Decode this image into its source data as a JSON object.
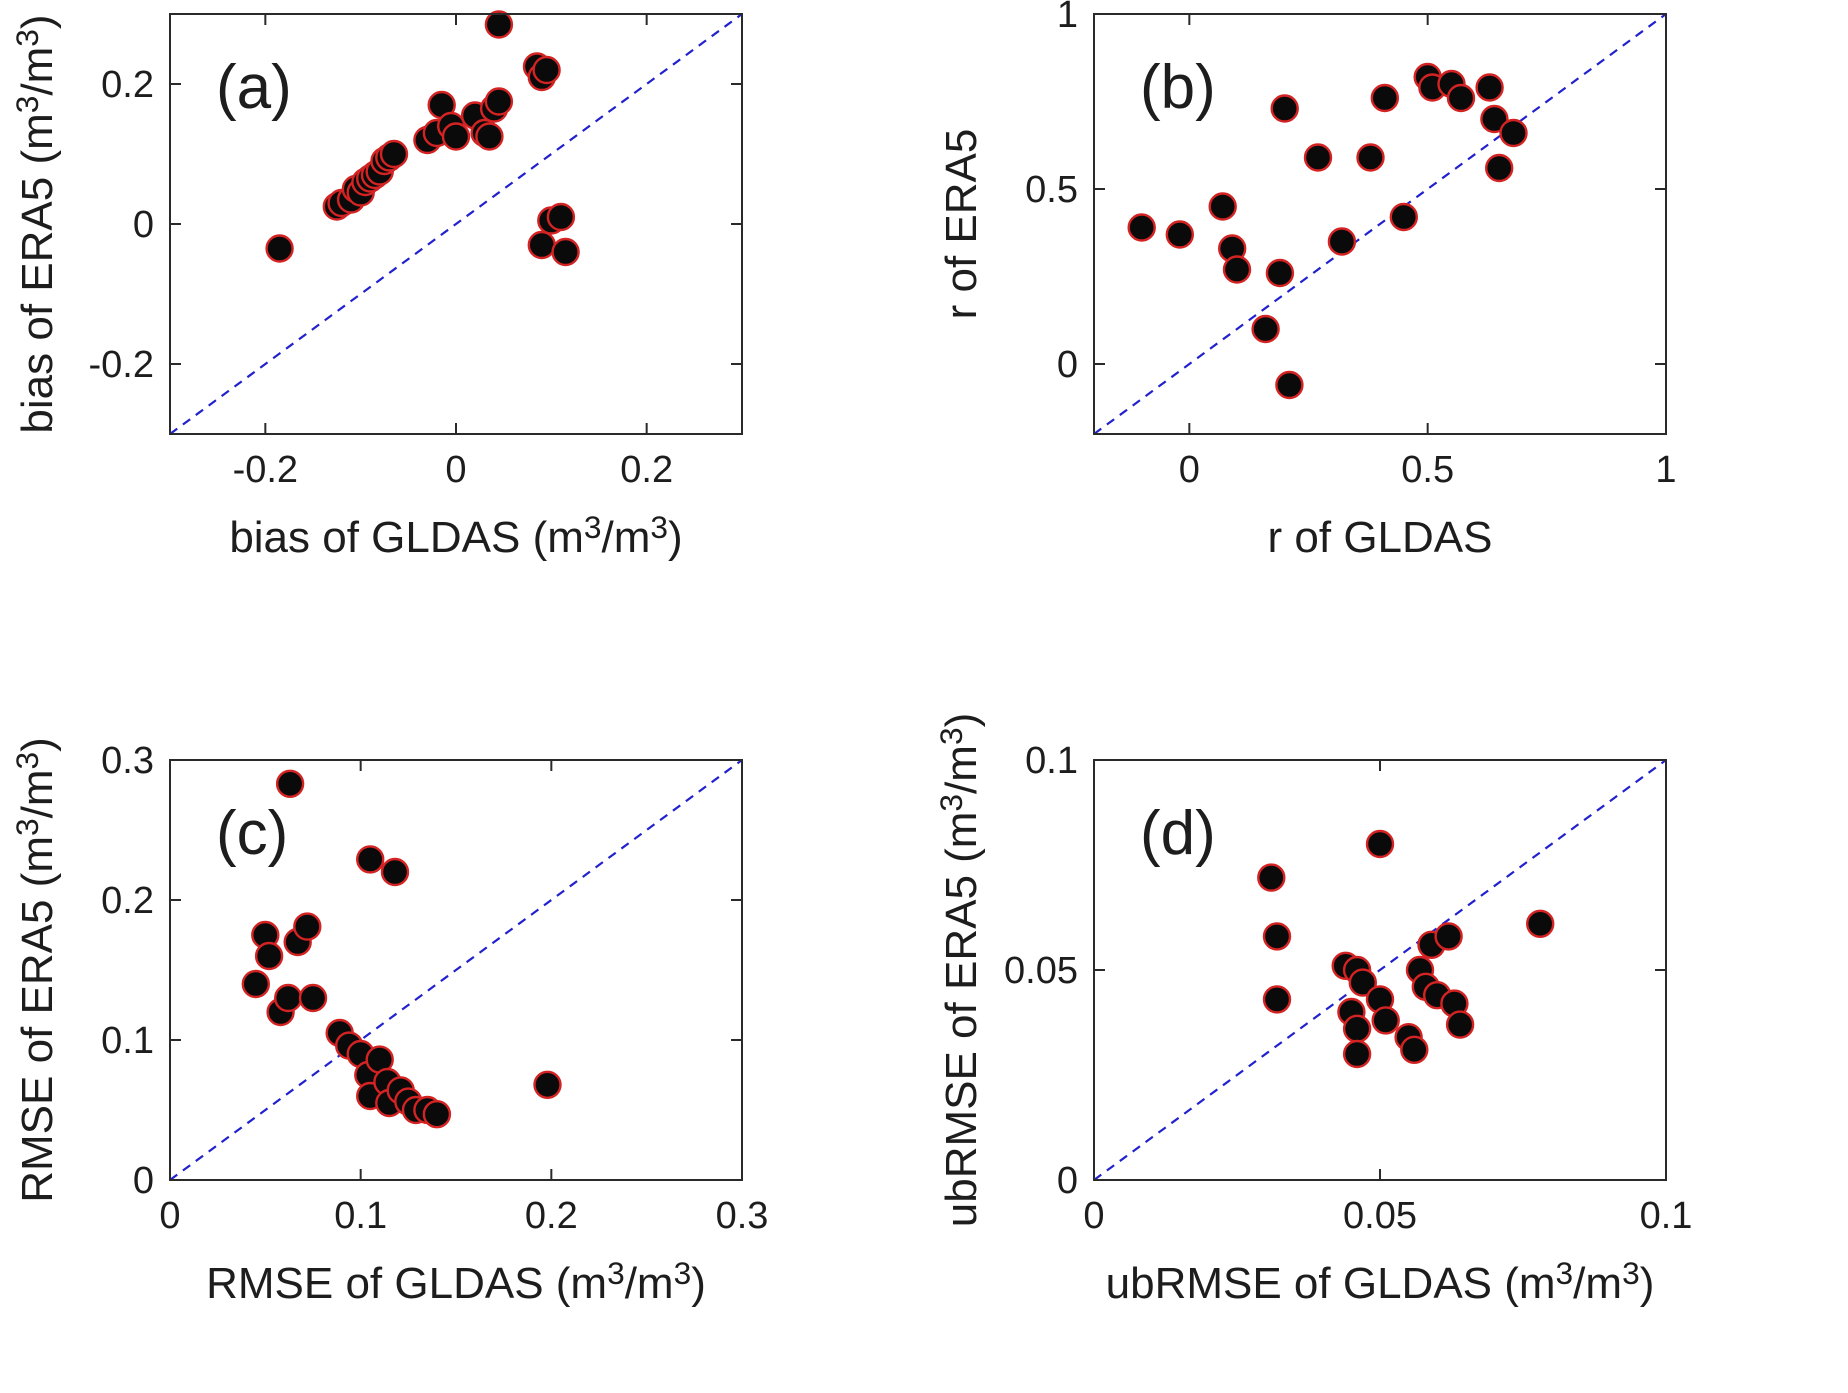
{
  "figure": {
    "background": "#ffffff",
    "marker": {
      "fill": "#0a0a0a",
      "edge": "#d42323"
    },
    "identity_line_color": "#2121cd",
    "axis_color": "#2a2a2a",
    "text_color": "#1d1d1d"
  },
  "chart_data": [
    {
      "id": "a",
      "panel_label": "(a)",
      "type": "scatter",
      "xlabel": "bias of GLDAS (m³/m³)",
      "ylabel": "bias of ERA5 (m³/m³)",
      "xlim": [
        -0.3,
        0.3
      ],
      "ylim": [
        -0.3,
        0.3
      ],
      "xticks": {
        "values": [
          -0.2,
          0,
          0.2
        ],
        "labels": [
          "-0.2",
          "0",
          "0.2"
        ]
      },
      "yticks": {
        "values": [
          -0.2,
          0,
          0.2
        ],
        "labels": [
          "-0.2",
          "0",
          "0.2"
        ]
      },
      "identity_line": true,
      "points": [
        [
          -0.185,
          -0.035
        ],
        [
          -0.125,
          0.025
        ],
        [
          -0.12,
          0.03
        ],
        [
          -0.11,
          0.035
        ],
        [
          -0.105,
          0.05
        ],
        [
          -0.1,
          0.045
        ],
        [
          -0.095,
          0.06
        ],
        [
          -0.09,
          0.065
        ],
        [
          -0.085,
          0.07
        ],
        [
          -0.08,
          0.075
        ],
        [
          -0.075,
          0.09
        ],
        [
          -0.07,
          0.095
        ],
        [
          -0.065,
          0.1
        ],
        [
          -0.03,
          0.12
        ],
        [
          -0.02,
          0.13
        ],
        [
          -0.015,
          0.17
        ],
        [
          -0.005,
          0.14
        ],
        [
          0.0,
          0.125
        ],
        [
          0.02,
          0.155
        ],
        [
          0.03,
          0.13
        ],
        [
          0.035,
          0.125
        ],
        [
          0.04,
          0.165
        ],
        [
          0.045,
          0.175
        ],
        [
          0.045,
          0.285
        ],
        [
          0.085,
          0.225
        ],
        [
          0.09,
          0.21
        ],
        [
          0.095,
          0.22
        ],
        [
          0.09,
          -0.03
        ],
        [
          0.1,
          0.005
        ],
        [
          0.11,
          0.01
        ],
        [
          0.115,
          -0.04
        ]
      ]
    },
    {
      "id": "b",
      "panel_label": "(b)",
      "type": "scatter",
      "xlabel": "r of GLDAS",
      "ylabel": "r of ERA5",
      "xlim": [
        -0.2,
        1
      ],
      "ylim": [
        -0.2,
        1
      ],
      "xticks": {
        "values": [
          0,
          0.5,
          1
        ],
        "labels": [
          "0",
          "0.5",
          "1"
        ]
      },
      "yticks": {
        "values": [
          0,
          0.5,
          1
        ],
        "labels": [
          "0",
          "0.5",
          "1"
        ]
      },
      "identity_line": true,
      "points": [
        [
          -0.1,
          0.39
        ],
        [
          -0.02,
          0.37
        ],
        [
          0.07,
          0.45
        ],
        [
          0.09,
          0.33
        ],
        [
          0.1,
          0.27
        ],
        [
          0.16,
          0.1
        ],
        [
          0.2,
          0.73
        ],
        [
          0.19,
          0.26
        ],
        [
          0.21,
          -0.06
        ],
        [
          0.27,
          0.59
        ],
        [
          0.32,
          0.35
        ],
        [
          0.38,
          0.59
        ],
        [
          0.41,
          0.76
        ],
        [
          0.45,
          0.42
        ],
        [
          0.5,
          0.82
        ],
        [
          0.51,
          0.79
        ],
        [
          0.55,
          0.8
        ],
        [
          0.57,
          0.76
        ],
        [
          0.63,
          0.79
        ],
        [
          0.64,
          0.7
        ],
        [
          0.65,
          0.56
        ],
        [
          0.68,
          0.66
        ]
      ]
    },
    {
      "id": "c",
      "panel_label": "(c)",
      "type": "scatter",
      "xlabel": "RMSE of GLDAS (m³/m³)",
      "ylabel": "RMSE of ERA5 (m³/m³)",
      "xlim": [
        0,
        0.3
      ],
      "ylim": [
        0,
        0.3
      ],
      "xticks": {
        "values": [
          0,
          0.1,
          0.2,
          0.3
        ],
        "labels": [
          "0",
          "0.1",
          "0.2",
          "0.3"
        ]
      },
      "yticks": {
        "values": [
          0,
          0.1,
          0.2,
          0.3
        ],
        "labels": [
          "0",
          "0.1",
          "0.2",
          "0.3"
        ]
      },
      "identity_line": true,
      "points": [
        [
          0.063,
          0.283
        ],
        [
          0.105,
          0.229
        ],
        [
          0.118,
          0.22
        ],
        [
          0.045,
          0.14
        ],
        [
          0.05,
          0.175
        ],
        [
          0.052,
          0.16
        ],
        [
          0.058,
          0.12
        ],
        [
          0.062,
          0.13
        ],
        [
          0.067,
          0.17
        ],
        [
          0.072,
          0.181
        ],
        [
          0.075,
          0.13
        ],
        [
          0.089,
          0.105
        ],
        [
          0.094,
          0.096
        ],
        [
          0.1,
          0.09
        ],
        [
          0.104,
          0.075
        ],
        [
          0.105,
          0.06
        ],
        [
          0.11,
          0.086
        ],
        [
          0.114,
          0.07
        ],
        [
          0.115,
          0.055
        ],
        [
          0.121,
          0.064
        ],
        [
          0.125,
          0.056
        ],
        [
          0.129,
          0.05
        ],
        [
          0.135,
          0.05
        ],
        [
          0.14,
          0.047
        ],
        [
          0.198,
          0.068
        ]
      ]
    },
    {
      "id": "d",
      "panel_label": "(d)",
      "type": "scatter",
      "xlabel": "ubRMSE of GLDAS (m³/m³)",
      "ylabel": "ubRMSE of ERA5 (m³/m³)",
      "xlim": [
        0,
        0.1
      ],
      "ylim": [
        0,
        0.1
      ],
      "xticks": {
        "values": [
          0,
          0.05,
          0.1
        ],
        "labels": [
          "0",
          "0.05",
          "0.1"
        ]
      },
      "yticks": {
        "values": [
          0,
          0.05,
          0.1
        ],
        "labels": [
          "0",
          "0.05",
          "0.1"
        ]
      },
      "identity_line": true,
      "points": [
        [
          0.031,
          0.072
        ],
        [
          0.032,
          0.058
        ],
        [
          0.032,
          0.043
        ],
        [
          0.05,
          0.08
        ],
        [
          0.044,
          0.051
        ],
        [
          0.046,
          0.05
        ],
        [
          0.047,
          0.047
        ],
        [
          0.045,
          0.04
        ],
        [
          0.046,
          0.036
        ],
        [
          0.046,
          0.03
        ],
        [
          0.05,
          0.043
        ],
        [
          0.051,
          0.038
        ],
        [
          0.055,
          0.034
        ],
        [
          0.056,
          0.031
        ],
        [
          0.057,
          0.05
        ],
        [
          0.058,
          0.046
        ],
        [
          0.059,
          0.056
        ],
        [
          0.06,
          0.044
        ],
        [
          0.062,
          0.058
        ],
        [
          0.063,
          0.042
        ],
        [
          0.064,
          0.037
        ],
        [
          0.078,
          0.061
        ]
      ]
    }
  ]
}
